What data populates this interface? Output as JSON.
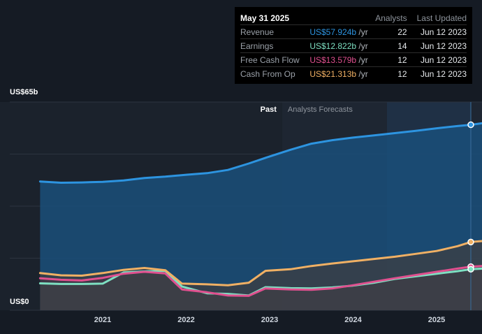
{
  "tooltip": {
    "date": "May 31 2025",
    "analysts_header": "Analysts",
    "updated_header": "Last Updated",
    "rows": [
      {
        "name": "Revenue",
        "value": "US$57.924b",
        "unit": "/yr",
        "analysts": "22",
        "updated": "Jun 12 2023",
        "color": "#2d94e0"
      },
      {
        "name": "Earnings",
        "value": "US$12.822b",
        "unit": "/yr",
        "analysts": "14",
        "updated": "Jun 12 2023",
        "color": "#7ee0c2"
      },
      {
        "name": "Free Cash Flow",
        "value": "US$13.579b",
        "unit": "/yr",
        "analysts": "12",
        "updated": "Jun 12 2023",
        "color": "#e0508f"
      },
      {
        "name": "Cash From Op",
        "value": "US$21.313b",
        "unit": "/yr",
        "analysts": "12",
        "updated": "Jun 12 2023",
        "color": "#f0b064"
      }
    ]
  },
  "chart_data": {
    "type": "area",
    "ylabel_top": "US$65b",
    "ylabel_bottom": "US$0",
    "ylim": [
      0,
      65
    ],
    "past_label": "Past",
    "forecast_label": "Analysts Forecasts",
    "x_ticks": [
      "2021",
      "2022",
      "2023",
      "2024",
      "2025"
    ],
    "x_tick_values": [
      2021.0,
      2022.0,
      2023.0,
      2024.0,
      2025.0
    ],
    "xlim": [
      2020.0,
      2025.55
    ],
    "forecast_start": 2023.15,
    "selected_x": 2025.41,
    "grid": true,
    "series": [
      {
        "name": "Revenue",
        "color": "#2d94e0",
        "x": [
          2020.25,
          2020.5,
          2020.75,
          2021.0,
          2021.25,
          2021.5,
          2021.75,
          2022.0,
          2022.25,
          2022.5,
          2022.75,
          2023.0,
          2023.25,
          2023.5,
          2023.75,
          2024.0,
          2024.25,
          2024.5,
          2024.75,
          2025.0,
          2025.25,
          2025.41,
          2025.55
        ],
        "values": [
          40.2,
          39.8,
          39.9,
          40.1,
          40.5,
          41.3,
          41.7,
          42.3,
          42.8,
          43.8,
          45.8,
          48.0,
          50.1,
          52.0,
          53.1,
          53.9,
          54.6,
          55.3,
          56.0,
          56.8,
          57.5,
          57.9,
          58.4
        ]
      },
      {
        "name": "Cash From Op",
        "color": "#f0b064",
        "x": [
          2020.25,
          2020.5,
          2020.75,
          2021.0,
          2021.25,
          2021.5,
          2021.75,
          2021.95,
          2022.25,
          2022.5,
          2022.75,
          2022.95,
          2023.25,
          2023.5,
          2023.75,
          2024.0,
          2024.25,
          2024.5,
          2024.75,
          2025.0,
          2025.25,
          2025.41,
          2025.55
        ],
        "values": [
          11.6,
          10.9,
          10.8,
          11.6,
          12.6,
          13.2,
          12.5,
          8.3,
          8.1,
          7.8,
          8.6,
          12.3,
          12.8,
          13.8,
          14.6,
          15.3,
          16.0,
          16.7,
          17.6,
          18.5,
          20.0,
          21.3,
          21.6
        ]
      },
      {
        "name": "Free Cash Flow",
        "color": "#e0508f",
        "x": [
          2020.25,
          2020.5,
          2020.75,
          2021.0,
          2021.25,
          2021.5,
          2021.75,
          2021.95,
          2022.25,
          2022.5,
          2022.75,
          2022.95,
          2023.25,
          2023.5,
          2023.75,
          2024.0,
          2024.25,
          2024.5,
          2024.75,
          2025.0,
          2025.25,
          2025.41,
          2025.55
        ],
        "values": [
          10.0,
          9.5,
          9.3,
          10.1,
          11.4,
          12.0,
          11.5,
          6.5,
          5.6,
          4.6,
          4.5,
          6.8,
          6.5,
          6.4,
          6.8,
          7.8,
          8.9,
          10.0,
          11.0,
          12.0,
          13.0,
          13.6,
          13.8
        ]
      },
      {
        "name": "Earnings",
        "color": "#7ee0c2",
        "x": [
          2020.25,
          2020.5,
          2020.75,
          2021.0,
          2021.25,
          2021.5,
          2021.75,
          2021.95,
          2022.25,
          2022.5,
          2022.75,
          2022.95,
          2023.25,
          2023.5,
          2023.75,
          2024.0,
          2024.25,
          2024.5,
          2024.75,
          2025.0,
          2025.25,
          2025.41,
          2025.55
        ],
        "values": [
          8.4,
          8.2,
          8.2,
          8.3,
          11.8,
          12.1,
          12.3,
          7.4,
          5.3,
          5.1,
          4.6,
          7.2,
          6.9,
          6.8,
          7.1,
          7.7,
          8.6,
          9.8,
          10.6,
          11.4,
          12.2,
          12.8,
          13.0
        ]
      }
    ]
  }
}
